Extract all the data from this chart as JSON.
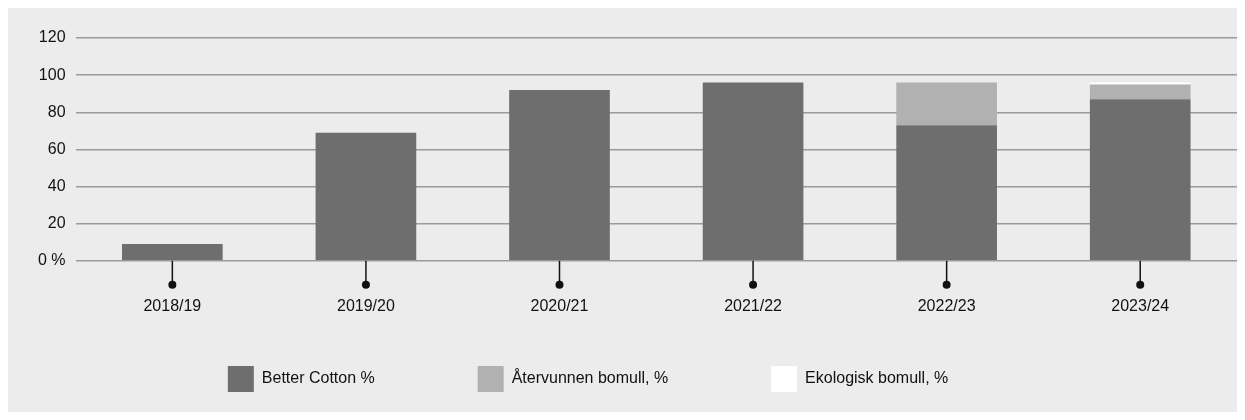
{
  "chart_data": {
    "type": "bar",
    "stacked": true,
    "categories": [
      "2018/19",
      "2019/20",
      "2020/21",
      "2021/22",
      "2022/23",
      "2023/24"
    ],
    "series": [
      {
        "name": "Better Cotton %",
        "color": "#6e6e6e",
        "values": [
          9,
          69,
          92,
          96,
          73,
          87
        ]
      },
      {
        "name": "Återvunnen bomull, %",
        "color": "#b1b1b1",
        "values": [
          0,
          0,
          0,
          0,
          23,
          8
        ]
      },
      {
        "name": "Ekologisk bomull, %",
        "color": "#ffffff",
        "values": [
          0,
          0,
          0,
          0,
          0,
          1
        ]
      }
    ],
    "ylim": [
      0,
      120
    ],
    "yticks": [
      {
        "value": 0,
        "label": "0 %"
      },
      20,
      40,
      60,
      80,
      100,
      120
    ],
    "grid": "y",
    "legend": "bottom"
  }
}
